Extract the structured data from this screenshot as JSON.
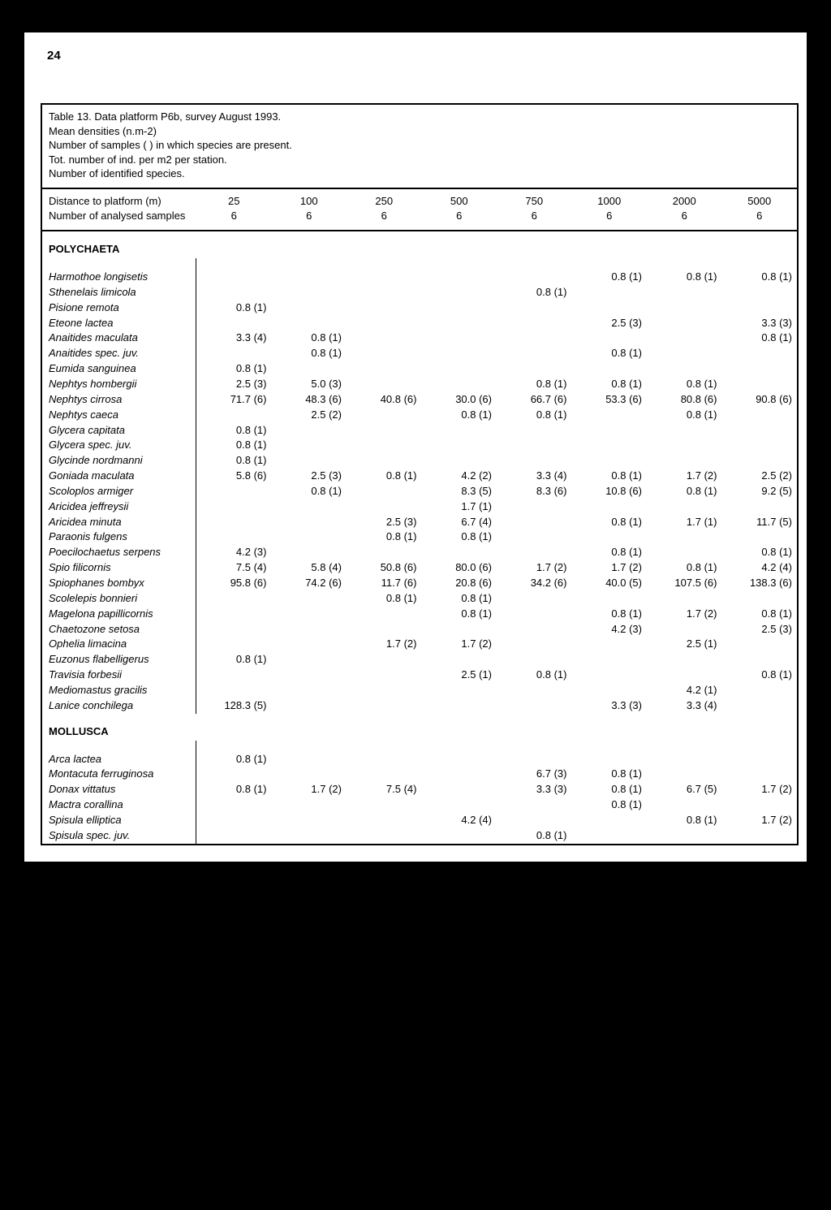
{
  "page_number": "24",
  "caption": [
    "Table 13. Data platform P6b, survey August 1993.",
    "Mean densities (n.m-2)",
    "Number of samples ( ) in which species are present.",
    "Tot. number of ind. per m2 per station.",
    "Number of identified species."
  ],
  "header": {
    "row1_label": "Distance to platform (m)",
    "row2_label": "Number of analysed samples",
    "distances": [
      "25",
      "100",
      "250",
      "500",
      "750",
      "1000",
      "2000",
      "5000"
    ],
    "samples": [
      "6",
      "6",
      "6",
      "6",
      "6",
      "6",
      "6",
      "6"
    ]
  },
  "sections": [
    {
      "title": "POLYCHAETA",
      "rows": [
        {
          "n": "Harmothoe longisetis",
          "v": [
            "",
            "",
            "",
            "",
            "",
            "0.8 (1)",
            "0.8 (1)",
            "0.8 (1)"
          ]
        },
        {
          "n": "Sthenelais limicola",
          "v": [
            "",
            "",
            "",
            "",
            "0.8 (1)",
            "",
            "",
            ""
          ]
        },
        {
          "n": "Pisione remota",
          "v": [
            "0.8 (1)",
            "",
            "",
            "",
            "",
            "",
            "",
            ""
          ]
        },
        {
          "n": "Eteone lactea",
          "v": [
            "",
            "",
            "",
            "",
            "",
            "2.5 (3)",
            "",
            "3.3 (3)"
          ]
        },
        {
          "n": "Anaitides maculata",
          "v": [
            "3.3 (4)",
            "0.8 (1)",
            "",
            "",
            "",
            "",
            "",
            "0.8 (1)"
          ]
        },
        {
          "n": "Anaitides spec. juv.",
          "v": [
            "",
            "0.8 (1)",
            "",
            "",
            "",
            "0.8 (1)",
            "",
            ""
          ]
        },
        {
          "n": "Eumida sanguinea",
          "v": [
            "0.8 (1)",
            "",
            "",
            "",
            "",
            "",
            "",
            ""
          ]
        },
        {
          "n": "Nephtys hombergii",
          "v": [
            "2.5 (3)",
            "5.0 (3)",
            "",
            "",
            "0.8 (1)",
            "0.8 (1)",
            "0.8 (1)",
            ""
          ]
        },
        {
          "n": "Nephtys cirrosa",
          "v": [
            "71.7 (6)",
            "48.3 (6)",
            "40.8 (6)",
            "30.0 (6)",
            "66.7 (6)",
            "53.3 (6)",
            "80.8 (6)",
            "90.8 (6)"
          ]
        },
        {
          "n": "Nephtys caeca",
          "v": [
            "",
            "2.5 (2)",
            "",
            "0.8 (1)",
            "0.8 (1)",
            "",
            "0.8 (1)",
            ""
          ]
        },
        {
          "n": "Glycera capitata",
          "v": [
            "0.8 (1)",
            "",
            "",
            "",
            "",
            "",
            "",
            ""
          ]
        },
        {
          "n": "Glycera spec. juv.",
          "v": [
            "0.8 (1)",
            "",
            "",
            "",
            "",
            "",
            "",
            ""
          ]
        },
        {
          "n": "Glycinde nordmanni",
          "v": [
            "0.8 (1)",
            "",
            "",
            "",
            "",
            "",
            "",
            ""
          ]
        },
        {
          "n": "Goniada maculata",
          "v": [
            "5.8 (6)",
            "2.5 (3)",
            "0.8 (1)",
            "4.2 (2)",
            "3.3 (4)",
            "0.8 (1)",
            "1.7 (2)",
            "2.5 (2)"
          ]
        },
        {
          "n": "Scoloplos armiger",
          "v": [
            "",
            "0.8 (1)",
            "",
            "8.3 (5)",
            "8.3 (6)",
            "10.8 (6)",
            "0.8 (1)",
            "9.2 (5)"
          ]
        },
        {
          "n": "Aricidea jeffreysii",
          "v": [
            "",
            "",
            "",
            "1.7 (1)",
            "",
            "",
            "",
            ""
          ]
        },
        {
          "n": "Aricidea minuta",
          "v": [
            "",
            "",
            "2.5 (3)",
            "6.7 (4)",
            "",
            "0.8 (1)",
            "1.7 (1)",
            "11.7 (5)"
          ]
        },
        {
          "n": "Paraonis fulgens",
          "v": [
            "",
            "",
            "0.8 (1)",
            "0.8 (1)",
            "",
            "",
            "",
            ""
          ]
        },
        {
          "n": "Poecilochaetus serpens",
          "v": [
            "4.2 (3)",
            "",
            "",
            "",
            "",
            "0.8 (1)",
            "",
            "0.8 (1)"
          ]
        },
        {
          "n": "Spio filicornis",
          "v": [
            "7.5 (4)",
            "5.8 (4)",
            "50.8 (6)",
            "80.0 (6)",
            "1.7 (2)",
            "1.7 (2)",
            "0.8 (1)",
            "4.2 (4)"
          ]
        },
        {
          "n": "Spiophanes bombyx",
          "v": [
            "95.8 (6)",
            "74.2 (6)",
            "11.7 (6)",
            "20.8 (6)",
            "34.2 (6)",
            "40.0 (5)",
            "107.5 (6)",
            "138.3 (6)"
          ]
        },
        {
          "n": "Scolelepis bonnieri",
          "v": [
            "",
            "",
            "0.8 (1)",
            "0.8 (1)",
            "",
            "",
            "",
            ""
          ]
        },
        {
          "n": "Magelona papillicornis",
          "v": [
            "",
            "",
            "",
            "0.8 (1)",
            "",
            "0.8 (1)",
            "1.7 (2)",
            "0.8 (1)"
          ]
        },
        {
          "n": "Chaetozone setosa",
          "v": [
            "",
            "",
            "",
            "",
            "",
            "4.2 (3)",
            "",
            "2.5 (3)"
          ]
        },
        {
          "n": "Ophelia limacina",
          "v": [
            "",
            "",
            "1.7 (2)",
            "1.7 (2)",
            "",
            "",
            "2.5 (1)",
            ""
          ]
        },
        {
          "n": "Euzonus flabelligerus",
          "v": [
            "0.8 (1)",
            "",
            "",
            "",
            "",
            "",
            "",
            ""
          ]
        },
        {
          "n": "Travisia forbesii",
          "v": [
            "",
            "",
            "",
            "2.5 (1)",
            "0.8 (1)",
            "",
            "",
            "0.8 (1)"
          ]
        },
        {
          "n": "Mediomastus gracilis",
          "v": [
            "",
            "",
            "",
            "",
            "",
            "",
            "4.2 (1)",
            ""
          ]
        },
        {
          "n": "Lanice conchilega",
          "v": [
            "128.3 (5)",
            "",
            "",
            "",
            "",
            "3.3 (3)",
            "3.3 (4)",
            ""
          ]
        }
      ]
    },
    {
      "title": "MOLLUSCA",
      "rows": [
        {
          "n": "Arca lactea",
          "v": [
            "0.8 (1)",
            "",
            "",
            "",
            "",
            "",
            "",
            ""
          ]
        },
        {
          "n": "Montacuta ferruginosa",
          "v": [
            "",
            "",
            "",
            "",
            "6.7 (3)",
            "0.8 (1)",
            "",
            ""
          ]
        },
        {
          "n": "Donax vittatus",
          "v": [
            "0.8 (1)",
            "1.7 (2)",
            "7.5 (4)",
            "",
            "3.3 (3)",
            "0.8 (1)",
            "6.7 (5)",
            "1.7 (2)"
          ]
        },
        {
          "n": "Mactra corallina",
          "v": [
            "",
            "",
            "",
            "",
            "",
            "0.8 (1)",
            "",
            ""
          ]
        },
        {
          "n": "Spisula elliptica",
          "v": [
            "",
            "",
            "",
            "4.2 (4)",
            "",
            "",
            "0.8 (1)",
            "1.7 (2)"
          ]
        },
        {
          "n": "Spisula spec. juv.",
          "v": [
            "",
            "",
            "",
            "",
            "0.8 (1)",
            "",
            "",
            ""
          ]
        }
      ]
    }
  ]
}
